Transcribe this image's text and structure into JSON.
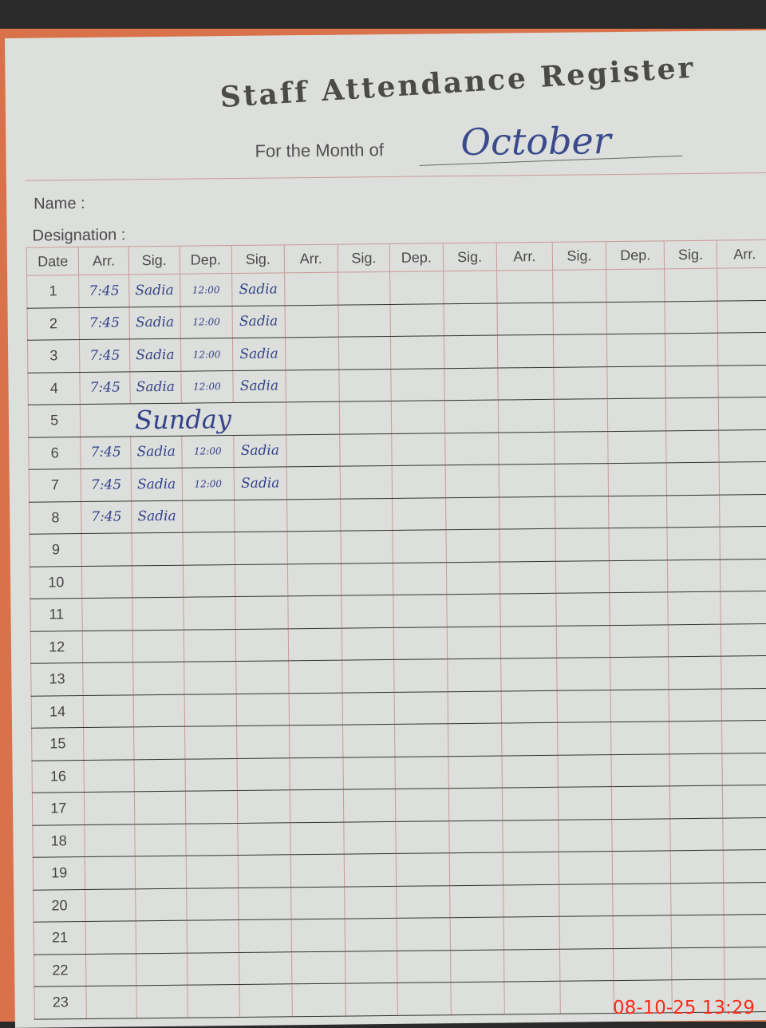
{
  "register": {
    "title": "Staff Attendance Register",
    "month_label": "For the Month of",
    "month_value": "October",
    "name_label": "Name :",
    "designation_label": "Designation :"
  },
  "columns": [
    "Date",
    "Arr.",
    "Sig.",
    "Dep.",
    "Sig.",
    "Arr.",
    "Sig.",
    "Dep.",
    "Sig.",
    "Arr.",
    "Sig.",
    "Dep.",
    "Sig.",
    "Arr."
  ],
  "rows": [
    {
      "date": "1",
      "arr": "7:45",
      "sig": "Sadia",
      "dep": "12:00",
      "sig2": "Sadia"
    },
    {
      "date": "2",
      "arr": "7:45",
      "sig": "Sadia",
      "dep": "12:00",
      "sig2": "Sadia"
    },
    {
      "date": "3",
      "arr": "7:45",
      "sig": "Sadia",
      "dep": "12:00",
      "sig2": "Sadia"
    },
    {
      "date": "4",
      "arr": "7:45",
      "sig": "Sadia",
      "dep": "12:00",
      "sig2": "Sadia"
    },
    {
      "date": "5",
      "arr": "",
      "sig": "",
      "dep": "",
      "sig2": ""
    },
    {
      "date": "6",
      "arr": "7:45",
      "sig": "Sadia",
      "dep": "12:00",
      "sig2": "Sadia"
    },
    {
      "date": "7",
      "arr": "7:45",
      "sig": "Sadia",
      "dep": "12:00",
      "sig2": "Sadia"
    },
    {
      "date": "8",
      "arr": "7:45",
      "sig": "Sadia",
      "dep": "",
      "sig2": ""
    },
    {
      "date": "9"
    },
    {
      "date": "10"
    },
    {
      "date": "11"
    },
    {
      "date": "12"
    },
    {
      "date": "13"
    },
    {
      "date": "14"
    },
    {
      "date": "15"
    },
    {
      "date": "16"
    },
    {
      "date": "17"
    },
    {
      "date": "18"
    },
    {
      "date": "19"
    },
    {
      "date": "20"
    },
    {
      "date": "21"
    },
    {
      "date": "22"
    },
    {
      "date": "23"
    }
  ],
  "sunday_note": "Sunday",
  "timestamp": "08-10-25  13:29",
  "colors": {
    "ink": "#34428a",
    "rule": "#c99a9a",
    "stamp": "#ff2a1a"
  }
}
